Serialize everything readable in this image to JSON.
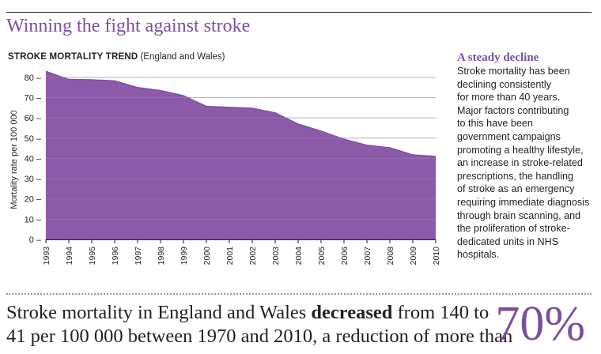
{
  "headline": "Winning the fight against stroke",
  "chart_title": {
    "strong": "STROKE MORTALITY TREND",
    "normal": "(England and Wales)"
  },
  "colors": {
    "accent": "#7b4f9d",
    "area_fill": "#8b5aa8",
    "text": "#231f20"
  },
  "chart_data": {
    "type": "area",
    "title": "STROKE MORTALITY TREND (England and Wales)",
    "xlabel": "",
    "ylabel": "Mortality rate per 100 000",
    "x": [
      1993,
      1994,
      1995,
      1996,
      1997,
      1998,
      1999,
      2000,
      2001,
      2002,
      2003,
      2004,
      2005,
      2006,
      2007,
      2008,
      2009,
      2010
    ],
    "x_tick_labels": [
      "1993",
      "1994",
      "1995",
      "1996",
      "1997",
      "1998",
      "1999",
      "2000",
      "2001",
      "2002",
      "2003",
      "2004",
      "2005",
      "2006",
      "2007",
      "2008",
      "2009",
      "2010"
    ],
    "values": [
      83,
      79,
      78.8,
      78.3,
      75,
      73.5,
      71,
      65.7,
      65.2,
      64.8,
      62.5,
      57,
      53.5,
      49.5,
      46.5,
      45.3,
      41.8,
      41
    ],
    "ylim": [
      0,
      85
    ],
    "y_ticks": [
      0,
      10,
      20,
      30,
      40,
      50,
      60,
      70,
      80
    ],
    "y_tick_labels": [
      "0 –",
      "10 –",
      "20 –",
      "30 –",
      "40 –",
      "50 –",
      "60 –",
      "70 –",
      "80 –"
    ],
    "grid": true
  },
  "sidebar": {
    "heading": "A steady decline",
    "lines": [
      "Stroke mortality has been",
      "declining consistently",
      "for more than 40 years.",
      "Major factors contributing",
      "to this have been",
      "government campaigns",
      "promoting a healthy lifestyle,",
      "an increase in stroke-related",
      "prescriptions, the handling",
      "of stroke as an emergency",
      "requiring immediate diagnosis",
      "through brain scanning, and",
      "the proliferation of stroke-",
      "dedicated units in NHS",
      "hospitals."
    ]
  },
  "footer": {
    "line1_pre": "Stroke mortality in England and Wales ",
    "line1_bold": "decreased",
    "line1_post": " from 140 to",
    "line2": "41 per 100 000 between 1970 and 2010, a reduction of more than",
    "big_number": "70%"
  }
}
